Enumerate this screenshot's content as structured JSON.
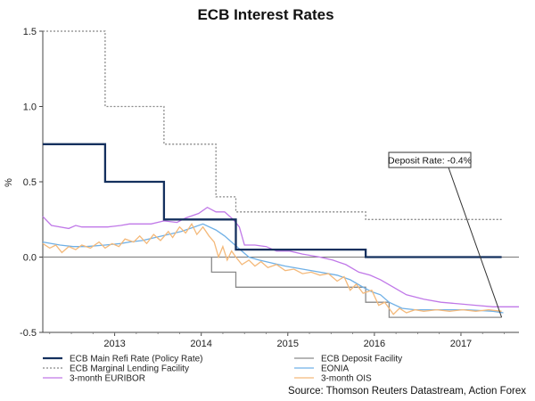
{
  "chart_data": {
    "type": "line",
    "title": "ECB Interest Rates",
    "ylabel": "%",
    "ylim": [
      -0.5,
      1.5
    ],
    "xlim": [
      2012.0,
      2017.5
    ],
    "yticks": [
      {
        "value": 1.5,
        "label": "1.5"
      },
      {
        "value": 1.0,
        "label": "1.0"
      },
      {
        "value": 0.5,
        "label": "0.5"
      },
      {
        "value": 0.0,
        "label": "0.0"
      },
      {
        "value": -0.5,
        "label": "-0.5"
      }
    ],
    "xticks": [
      {
        "value": 2012.83,
        "label": "2013"
      },
      {
        "value": 2013.83,
        "label": "2014"
      },
      {
        "value": 2014.83,
        "label": "2015"
      },
      {
        "value": 2015.83,
        "label": "2016"
      },
      {
        "value": 2016.83,
        "label": "2017"
      }
    ],
    "annotation": {
      "text": "Deposit Rate: -0.4%",
      "x": 2017.3,
      "y": -0.4
    },
    "source": "Source: Thomson Reuters Datastream, Action Forex",
    "series": [
      {
        "name": "ECB Main Refi Rate (Policy Rate)",
        "color": "#14305e",
        "style": "solid-thick",
        "points": [
          [
            2012.0,
            0.75
          ],
          [
            2012.72,
            0.75
          ],
          [
            2012.72,
            0.5
          ],
          [
            2013.4,
            0.5
          ],
          [
            2013.4,
            0.25
          ],
          [
            2014.23,
            0.25
          ],
          [
            2014.23,
            0.05
          ],
          [
            2015.73,
            0.05
          ],
          [
            2015.73,
            0.0
          ],
          [
            2017.3,
            0.0
          ]
        ]
      },
      {
        "name": "ECB Marginal Lending Facility",
        "color": "#888888",
        "style": "dotted",
        "points": [
          [
            2012.0,
            1.5
          ],
          [
            2012.72,
            1.5
          ],
          [
            2012.72,
            1.0
          ],
          [
            2013.4,
            1.0
          ],
          [
            2013.4,
            0.75
          ],
          [
            2014.0,
            0.75
          ],
          [
            2014.0,
            0.4
          ],
          [
            2014.23,
            0.4
          ],
          [
            2014.23,
            0.3
          ],
          [
            2015.73,
            0.3
          ],
          [
            2015.73,
            0.25
          ],
          [
            2017.3,
            0.25
          ]
        ]
      },
      {
        "name": "3-month EURIBOR",
        "color": "#c078e8",
        "style": "solid",
        "points": [
          [
            2012.0,
            0.27
          ],
          [
            2012.1,
            0.21
          ],
          [
            2012.3,
            0.19
          ],
          [
            2012.38,
            0.21
          ],
          [
            2012.45,
            0.2
          ],
          [
            2012.6,
            0.2
          ],
          [
            2012.75,
            0.2
          ],
          [
            2012.9,
            0.21
          ],
          [
            2013.0,
            0.22
          ],
          [
            2013.25,
            0.22
          ],
          [
            2013.4,
            0.24
          ],
          [
            2013.55,
            0.23
          ],
          [
            2013.65,
            0.26
          ],
          [
            2013.8,
            0.29
          ],
          [
            2013.9,
            0.33
          ],
          [
            2014.0,
            0.3
          ],
          [
            2014.1,
            0.3
          ],
          [
            2014.2,
            0.25
          ],
          [
            2014.27,
            0.2
          ],
          [
            2014.33,
            0.08
          ],
          [
            2014.45,
            0.08
          ],
          [
            2014.58,
            0.07
          ],
          [
            2014.7,
            0.04
          ],
          [
            2014.85,
            0.04
          ],
          [
            2015.0,
            0.02
          ],
          [
            2015.2,
            0.0
          ],
          [
            2015.35,
            -0.02
          ],
          [
            2015.5,
            -0.05
          ],
          [
            2015.65,
            -0.1
          ],
          [
            2015.78,
            -0.12
          ],
          [
            2015.9,
            -0.15
          ],
          [
            2016.05,
            -0.2
          ],
          [
            2016.2,
            -0.25
          ],
          [
            2016.4,
            -0.28
          ],
          [
            2016.6,
            -0.3
          ],
          [
            2016.8,
            -0.31
          ],
          [
            2017.0,
            -0.32
          ],
          [
            2017.2,
            -0.33
          ],
          [
            2017.5,
            -0.33
          ]
        ]
      },
      {
        "name": "ECB Deposit Facility",
        "color": "#8a8a8a",
        "style": "solid",
        "points": [
          [
            2012.0,
            0.0
          ],
          [
            2013.95,
            0.0
          ],
          [
            2013.95,
            -0.1
          ],
          [
            2014.23,
            -0.1
          ],
          [
            2014.23,
            -0.2
          ],
          [
            2015.73,
            -0.2
          ],
          [
            2015.73,
            -0.3
          ],
          [
            2016.0,
            -0.3
          ],
          [
            2016.0,
            -0.4
          ],
          [
            2017.3,
            -0.4
          ]
        ]
      },
      {
        "name": "EONIA",
        "color": "#6fb0e6",
        "style": "solid",
        "points": [
          [
            2012.0,
            0.1
          ],
          [
            2012.2,
            0.08
          ],
          [
            2012.35,
            0.07
          ],
          [
            2012.5,
            0.07
          ],
          [
            2012.72,
            0.08
          ],
          [
            2012.9,
            0.09
          ],
          [
            2013.0,
            0.1
          ],
          [
            2013.15,
            0.11
          ],
          [
            2013.3,
            0.13
          ],
          [
            2013.45,
            0.15
          ],
          [
            2013.6,
            0.17
          ],
          [
            2013.75,
            0.2
          ],
          [
            2013.85,
            0.22
          ],
          [
            2014.0,
            0.18
          ],
          [
            2014.1,
            0.14
          ],
          [
            2014.18,
            0.1
          ],
          [
            2014.28,
            0.05
          ],
          [
            2014.38,
            0.0
          ],
          [
            2014.5,
            -0.02
          ],
          [
            2014.65,
            -0.04
          ],
          [
            2014.8,
            -0.06
          ],
          [
            2015.0,
            -0.08
          ],
          [
            2015.2,
            -0.1
          ],
          [
            2015.4,
            -0.12
          ],
          [
            2015.55,
            -0.15
          ],
          [
            2015.7,
            -0.2
          ],
          [
            2015.8,
            -0.23
          ],
          [
            2015.9,
            -0.25
          ],
          [
            2016.0,
            -0.3
          ],
          [
            2016.15,
            -0.34
          ],
          [
            2016.3,
            -0.35
          ],
          [
            2016.6,
            -0.35
          ],
          [
            2016.9,
            -0.35
          ],
          [
            2017.2,
            -0.36
          ],
          [
            2017.32,
            -0.37
          ]
        ]
      },
      {
        "name": "3-month OIS",
        "color": "#f4b97a",
        "style": "solid",
        "points": [
          [
            2012.0,
            0.09
          ],
          [
            2012.08,
            0.06
          ],
          [
            2012.15,
            0.08
          ],
          [
            2012.22,
            0.03
          ],
          [
            2012.3,
            0.07
          ],
          [
            2012.38,
            0.05
          ],
          [
            2012.45,
            0.08
          ],
          [
            2012.55,
            0.06
          ],
          [
            2012.65,
            0.1
          ],
          [
            2012.72,
            0.06
          ],
          [
            2012.8,
            0.09
          ],
          [
            2012.88,
            0.07
          ],
          [
            2012.95,
            0.12
          ],
          [
            2013.05,
            0.1
          ],
          [
            2013.12,
            0.14
          ],
          [
            2013.2,
            0.09
          ],
          [
            2013.28,
            0.15
          ],
          [
            2013.36,
            0.11
          ],
          [
            2013.45,
            0.17
          ],
          [
            2013.5,
            0.13
          ],
          [
            2013.58,
            0.2
          ],
          [
            2013.65,
            0.16
          ],
          [
            2013.72,
            0.22
          ],
          [
            2013.78,
            0.15
          ],
          [
            2013.85,
            0.2
          ],
          [
            2013.92,
            0.14
          ],
          [
            2013.98,
            0.1
          ],
          [
            2014.03,
            0.0
          ],
          [
            2014.08,
            0.07
          ],
          [
            2014.13,
            -0.02
          ],
          [
            2014.18,
            0.04
          ],
          [
            2014.23,
            0.0
          ],
          [
            2014.3,
            -0.05
          ],
          [
            2014.38,
            -0.02
          ],
          [
            2014.45,
            -0.06
          ],
          [
            2014.52,
            -0.03
          ],
          [
            2014.6,
            -0.07
          ],
          [
            2014.7,
            -0.05
          ],
          [
            2014.8,
            -0.09
          ],
          [
            2014.9,
            -0.08
          ],
          [
            2015.0,
            -0.11
          ],
          [
            2015.1,
            -0.1
          ],
          [
            2015.2,
            -0.12
          ],
          [
            2015.3,
            -0.11
          ],
          [
            2015.4,
            -0.16
          ],
          [
            2015.48,
            -0.13
          ],
          [
            2015.55,
            -0.22
          ],
          [
            2015.62,
            -0.18
          ],
          [
            2015.7,
            -0.24
          ],
          [
            2015.8,
            -0.22
          ],
          [
            2015.88,
            -0.32
          ],
          [
            2015.95,
            -0.3
          ],
          [
            2016.05,
            -0.38
          ],
          [
            2016.12,
            -0.34
          ],
          [
            2016.2,
            -0.37
          ],
          [
            2016.3,
            -0.35
          ],
          [
            2016.4,
            -0.36
          ],
          [
            2016.55,
            -0.35
          ],
          [
            2016.7,
            -0.36
          ],
          [
            2016.85,
            -0.35
          ],
          [
            2017.0,
            -0.36
          ],
          [
            2017.15,
            -0.35
          ],
          [
            2017.3,
            -0.36
          ]
        ]
      }
    ],
    "legend": [
      {
        "label": "ECB Main Refi Rate (Policy Rate)",
        "color": "#14305e",
        "style": "solid-thick"
      },
      {
        "label": "ECB Deposit Facility",
        "color": "#8a8a8a",
        "style": "solid"
      },
      {
        "label": "ECB Marginal Lending Facility",
        "color": "#888888",
        "style": "dotted"
      },
      {
        "label": "EONIA",
        "color": "#6fb0e6",
        "style": "solid"
      },
      {
        "label": "3-month EURIBOR",
        "color": "#c078e8",
        "style": "solid"
      },
      {
        "label": "3-month OIS",
        "color": "#f4b97a",
        "style": "solid"
      }
    ]
  }
}
